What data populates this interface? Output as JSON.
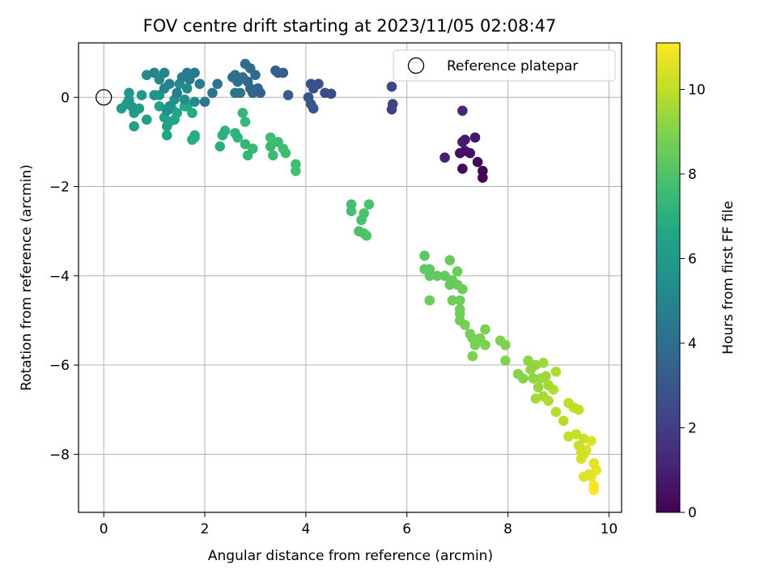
{
  "chart_data": {
    "type": "scatter",
    "title": "FOV centre drift starting at 2023/11/05 02:08:47",
    "xlabel": "Angular distance from reference (arcmin)",
    "ylabel": "Rotation from reference (arcmin)",
    "xlim": [
      -0.5,
      10.25
    ],
    "ylim": [
      -9.3,
      1.22
    ],
    "xticks": [
      0,
      2,
      4,
      6,
      8,
      10
    ],
    "xtick_labels": [
      "0",
      "2",
      "4",
      "6",
      "8",
      "10"
    ],
    "yticks": [
      0,
      -2,
      -4,
      -6,
      -8
    ],
    "ytick_labels": [
      "0",
      "−2",
      "−4",
      "−6",
      "−8"
    ],
    "grid": true,
    "legend": {
      "label": "Reference platepar",
      "placement": "top-right"
    },
    "reference_point": [
      0,
      0
    ],
    "colorbar": {
      "label": "Hours from first FF file",
      "range": [
        0,
        11.1
      ],
      "ticks": [
        0,
        2,
        4,
        6,
        8,
        10
      ],
      "tick_labels": [
        "0",
        "2",
        "4",
        "6",
        "8",
        "10"
      ],
      "colormap": "viridis"
    },
    "series": [
      {
        "points": [
          [
            7.5,
            -1.8,
            0.05
          ],
          [
            7.5,
            -1.65,
            0.15
          ],
          [
            7.4,
            -1.45,
            0.25
          ],
          [
            7.1,
            -1.6,
            0.35
          ],
          [
            7.05,
            -1.25,
            0.45
          ],
          [
            7.25,
            -1.25,
            0.55
          ],
          [
            7.15,
            -1.2,
            0.6
          ],
          [
            7.35,
            -0.9,
            0.7
          ],
          [
            7.15,
            -0.95,
            0.8
          ],
          [
            7.1,
            -1.0,
            0.9
          ],
          [
            6.75,
            -1.35,
            1.0
          ],
          [
            7.1,
            -0.3,
            1.2
          ],
          [
            5.7,
            -0.27,
            2.1
          ],
          [
            5.72,
            -0.15,
            2.2
          ],
          [
            5.7,
            0.24,
            2.3
          ],
          [
            4.5,
            0.08,
            2.5
          ],
          [
            4.38,
            0.1,
            2.6
          ],
          [
            4.25,
            0.3,
            2.7
          ],
          [
            4.15,
            0.2,
            2.75
          ],
          [
            4.1,
            0.3,
            2.8
          ],
          [
            4.05,
            -0.0,
            2.9
          ],
          [
            4.1,
            -0.15,
            3.0
          ],
          [
            4.15,
            -0.25,
            3.05
          ],
          [
            3.65,
            0.05,
            3.2
          ],
          [
            3.55,
            0.55,
            3.3
          ],
          [
            3.45,
            0.55,
            3.35
          ],
          [
            3.4,
            0.6,
            3.4
          ],
          [
            3.1,
            0.1,
            3.5
          ],
          [
            3.05,
            0.2,
            3.55
          ],
          [
            2.95,
            0.1,
            3.6
          ],
          [
            2.9,
            0.2,
            3.7
          ],
          [
            2.85,
            0.35,
            3.75
          ],
          [
            3.0,
            0.5,
            3.8
          ],
          [
            2.8,
            0.75,
            3.9
          ],
          [
            2.9,
            0.65,
            3.95
          ],
          [
            2.75,
            0.45,
            4.0
          ],
          [
            2.65,
            0.35,
            4.05
          ],
          [
            2.6,
            0.5,
            4.1
          ],
          [
            2.55,
            0.45,
            4.15
          ],
          [
            2.6,
            0.1,
            4.2
          ],
          [
            2.7,
            0.1,
            4.25
          ],
          [
            2.25,
            0.3,
            4.3
          ],
          [
            2.15,
            0.1,
            4.35
          ],
          [
            2.0,
            -0.1,
            4.4
          ],
          [
            1.9,
            0.3,
            4.5
          ],
          [
            1.8,
            0.55,
            4.55
          ],
          [
            1.7,
            0.4,
            4.6
          ],
          [
            1.65,
            0.55,
            4.65
          ],
          [
            1.55,
            0.45,
            4.7
          ],
          [
            1.45,
            0.1,
            4.8
          ],
          [
            1.3,
            0.3,
            4.85
          ],
          [
            1.2,
            0.2,
            4.9
          ],
          [
            1.2,
            0.55,
            5.0
          ],
          [
            1.1,
            0.4,
            5.05
          ],
          [
            1.0,
            0.55,
            5.1
          ],
          [
            0.85,
            0.5,
            5.2
          ],
          [
            1.5,
            0.3,
            5.3
          ],
          [
            1.65,
            0.2,
            5.35
          ],
          [
            1.8,
            -0.1,
            5.4
          ],
          [
            1.6,
            -0.05,
            5.5
          ],
          [
            1.4,
            -0.05,
            5.55
          ],
          [
            1.3,
            -0.2,
            5.6
          ],
          [
            1.25,
            -0.3,
            5.65
          ],
          [
            1.1,
            0.05,
            5.7
          ],
          [
            1.0,
            0.05,
            5.75
          ],
          [
            0.75,
            0.05,
            5.8
          ],
          [
            0.5,
            0.1,
            5.85
          ],
          [
            0.5,
            -0.05,
            5.9
          ],
          [
            0.45,
            -0.15,
            5.95
          ],
          [
            0.35,
            -0.25,
            6.0
          ],
          [
            0.55,
            -0.2,
            6.05
          ],
          [
            0.6,
            -0.35,
            6.1
          ],
          [
            0.7,
            -0.25,
            6.15
          ],
          [
            0.85,
            -0.5,
            6.2
          ],
          [
            0.6,
            -0.65,
            6.25
          ],
          [
            1.1,
            -0.2,
            6.3
          ],
          [
            1.2,
            -0.45,
            6.35
          ],
          [
            1.25,
            -0.65,
            6.4
          ],
          [
            1.25,
            -0.85,
            6.45
          ],
          [
            1.3,
            -0.55,
            6.5
          ],
          [
            1.4,
            -0.5,
            6.55
          ],
          [
            1.45,
            -0.35,
            6.6
          ],
          [
            1.35,
            -0.25,
            6.65
          ],
          [
            1.65,
            -0.2,
            6.7
          ],
          [
            1.75,
            -0.35,
            6.75
          ],
          [
            1.6,
            -0.2,
            6.8
          ],
          [
            1.8,
            -0.85,
            6.85
          ],
          [
            1.75,
            -0.95,
            6.9
          ],
          [
            1.8,
            -0.9,
            6.95
          ],
          [
            2.3,
            -1.1,
            7.0
          ],
          [
            2.35,
            -0.85,
            7.05
          ],
          [
            2.4,
            -0.75,
            7.1
          ],
          [
            2.6,
            -0.8,
            7.15
          ],
          [
            2.65,
            -0.9,
            7.2
          ],
          [
            2.8,
            -1.05,
            7.25
          ],
          [
            2.85,
            -1.3,
            7.3
          ],
          [
            2.75,
            -0.35,
            7.35
          ],
          [
            2.8,
            -0.55,
            7.4
          ],
          [
            2.95,
            -1.15,
            7.45
          ],
          [
            3.3,
            -1.1,
            7.5
          ],
          [
            3.35,
            -1.3,
            7.55
          ],
          [
            3.3,
            -0.9,
            7.6
          ],
          [
            3.45,
            -1.0,
            7.62
          ],
          [
            3.55,
            -1.15,
            7.65
          ],
          [
            3.6,
            -1.25,
            7.7
          ],
          [
            3.8,
            -1.5,
            7.72
          ],
          [
            3.8,
            -1.65,
            7.75
          ],
          [
            4.9,
            -2.4,
            7.8
          ],
          [
            4.9,
            -2.55,
            7.82
          ],
          [
            5.1,
            -2.75,
            7.85
          ],
          [
            5.15,
            -2.6,
            7.87
          ],
          [
            5.25,
            -2.4,
            7.9
          ],
          [
            5.05,
            -3.0,
            7.92
          ],
          [
            5.15,
            -3.05,
            7.95
          ],
          [
            5.2,
            -3.1,
            7.97
          ],
          [
            6.35,
            -3.55,
            8.3
          ],
          [
            6.35,
            -3.85,
            8.32
          ],
          [
            6.45,
            -3.85,
            8.35
          ],
          [
            6.45,
            -4.0,
            8.37
          ],
          [
            6.6,
            -4.0,
            8.4
          ],
          [
            6.75,
            -4.0,
            8.42
          ],
          [
            6.85,
            -4.2,
            8.45
          ],
          [
            6.85,
            -3.65,
            8.47
          ],
          [
            7.0,
            -3.9,
            8.5
          ],
          [
            6.9,
            -4.1,
            8.52
          ],
          [
            7.0,
            -4.2,
            8.55
          ],
          [
            7.1,
            -4.3,
            8.57
          ],
          [
            6.45,
            -4.55,
            8.6
          ],
          [
            6.9,
            -4.55,
            8.62
          ],
          [
            7.05,
            -4.55,
            8.65
          ],
          [
            7.05,
            -4.75,
            8.67
          ],
          [
            7.05,
            -4.85,
            8.7
          ],
          [
            7.05,
            -5.0,
            8.72
          ],
          [
            7.15,
            -5.1,
            8.75
          ],
          [
            7.25,
            -5.3,
            8.77
          ],
          [
            7.3,
            -5.4,
            8.8
          ],
          [
            7.35,
            -5.55,
            8.82
          ],
          [
            7.45,
            -5.4,
            8.85
          ],
          [
            7.55,
            -5.2,
            8.87
          ],
          [
            7.55,
            -5.55,
            8.9
          ],
          [
            7.3,
            -5.8,
            8.92
          ],
          [
            7.85,
            -5.45,
            8.95
          ],
          [
            7.95,
            -5.55,
            8.97
          ],
          [
            7.95,
            -5.9,
            9.0
          ],
          [
            8.2,
            -6.2,
            9.05
          ],
          [
            8.3,
            -6.3,
            9.1
          ],
          [
            8.4,
            -5.9,
            9.15
          ],
          [
            8.45,
            -6.1,
            9.2
          ],
          [
            8.5,
            -6.3,
            9.25
          ],
          [
            8.55,
            -6.0,
            9.3
          ],
          [
            8.6,
            -6.5,
            9.35
          ],
          [
            8.65,
            -6.3,
            9.4
          ],
          [
            8.7,
            -5.95,
            9.45
          ],
          [
            8.75,
            -6.25,
            9.5
          ],
          [
            8.8,
            -6.45,
            9.55
          ],
          [
            8.55,
            -6.75,
            9.6
          ],
          [
            8.7,
            -6.7,
            9.65
          ],
          [
            8.8,
            -6.8,
            9.7
          ],
          [
            8.95,
            -6.15,
            9.75
          ],
          [
            8.9,
            -6.55,
            9.8
          ],
          [
            8.95,
            -7.05,
            9.85
          ],
          [
            9.1,
            -7.25,
            9.9
          ],
          [
            9.2,
            -6.85,
            9.95
          ],
          [
            9.3,
            -6.95,
            10.0
          ],
          [
            9.4,
            -7.0,
            10.05
          ],
          [
            9.2,
            -7.6,
            10.1
          ],
          [
            9.35,
            -7.55,
            10.15
          ],
          [
            9.4,
            -7.8,
            10.2
          ],
          [
            9.5,
            -7.65,
            10.25
          ],
          [
            9.45,
            -7.95,
            10.3
          ],
          [
            9.5,
            -8.0,
            10.35
          ],
          [
            9.45,
            -8.1,
            10.4
          ],
          [
            9.55,
            -7.9,
            10.45
          ],
          [
            9.65,
            -7.7,
            10.5
          ],
          [
            9.5,
            -8.5,
            10.55
          ],
          [
            9.6,
            -8.45,
            10.6
          ],
          [
            9.7,
            -8.2,
            10.65
          ],
          [
            9.75,
            -8.35,
            10.75
          ],
          [
            9.65,
            -8.5,
            10.85
          ],
          [
            9.7,
            -8.7,
            10.95
          ],
          [
            9.7,
            -8.8,
            11.05
          ]
        ]
      }
    ]
  }
}
